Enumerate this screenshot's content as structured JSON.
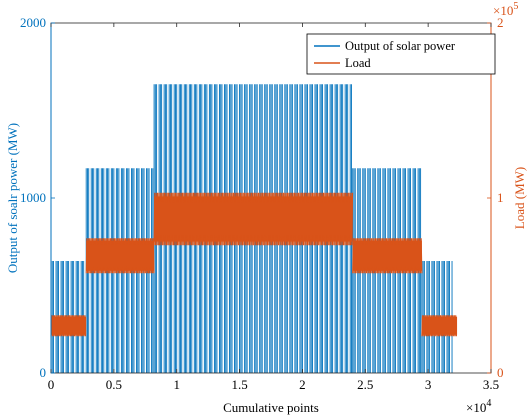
{
  "chart_data": {
    "type": "line",
    "xlabel": "Cumulative points",
    "x_exponent_label": "×10",
    "x_exponent_power": "4",
    "x_exponent_color": "#000000",
    "y_left_label": "Output of soalr power (MW)",
    "y_right_label": "Load (MW)",
    "y_right_exponent_label": "×10",
    "y_right_exponent_power": "5",
    "xlim": [
      0,
      35000
    ],
    "ylim_left": [
      0,
      2000
    ],
    "ylim_right": [
      0,
      200000
    ],
    "x_ticks": [
      0,
      5000,
      10000,
      15000,
      20000,
      25000,
      30000,
      35000
    ],
    "x_tick_labels": [
      "0",
      "0.5",
      "1",
      "1.5",
      "2",
      "2.5",
      "3",
      "3.5"
    ],
    "y_left_ticks": [
      0,
      1000,
      2000
    ],
    "y_left_tick_labels": [
      "0",
      "1000",
      "2000"
    ],
    "y_right_ticks": [
      0,
      100000,
      200000
    ],
    "y_right_tick_labels": [
      "0",
      "1",
      "2"
    ],
    "legend_placement": "top-right",
    "grid": false,
    "series": [
      {
        "name": "Output of solar power",
        "axis": "left",
        "color": "#0072BD",
        "segments": [
          {
            "x_start": 0,
            "x_end": 2800,
            "peak": 640
          },
          {
            "x_start": 2800,
            "x_end": 8200,
            "peak": 1170
          },
          {
            "x_start": 8200,
            "x_end": 24000,
            "peak": 1650
          },
          {
            "x_start": 24000,
            "x_end": 29500,
            "peak": 1170
          },
          {
            "x_start": 29500,
            "x_end": 32000,
            "peak": 640
          }
        ]
      },
      {
        "name": "Load",
        "axis": "right",
        "color": "#D95319",
        "segments": [
          {
            "x_start": 0,
            "x_end": 2800,
            "low": 21000,
            "high": 33000
          },
          {
            "x_start": 2800,
            "x_end": 8200,
            "low": 57000,
            "high": 77000
          },
          {
            "x_start": 8200,
            "x_end": 24000,
            "low": 73000,
            "high": 103000
          },
          {
            "x_start": 24000,
            "x_end": 29500,
            "low": 57000,
            "high": 77000
          },
          {
            "x_start": 29500,
            "x_end": 32300,
            "low": 21000,
            "high": 33000
          }
        ]
      }
    ]
  }
}
